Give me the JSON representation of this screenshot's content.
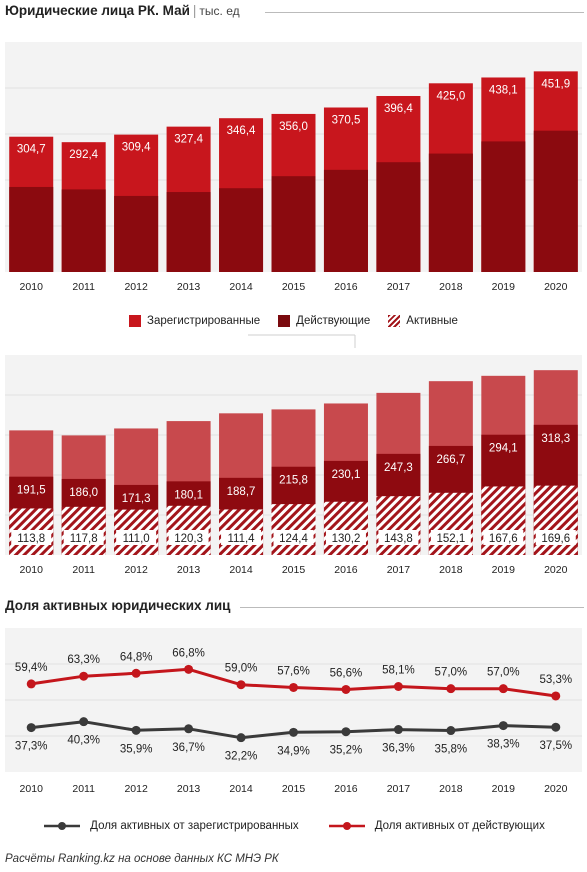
{
  "header": {
    "title": "Юридические лица РК. Май",
    "separator": "|",
    "unit": "тыс. ед"
  },
  "chart_data": [
    {
      "type": "bar",
      "categories": [
        "2010",
        "2011",
        "2012",
        "2013",
        "2014",
        "2015",
        "2016",
        "2017",
        "2018",
        "2019",
        "2020"
      ],
      "series": [
        {
          "name": "Зарегистрированные",
          "values": [
            304.7,
            292.4,
            309.4,
            327.4,
            346.4,
            356.0,
            370.5,
            396.4,
            425.0,
            438.1,
            451.9
          ],
          "labels": [
            "304,7",
            "292,4",
            "309,4",
            "327,4",
            "346,4",
            "356,0",
            "370,5",
            "396,4",
            "425,0",
            "438,1",
            "451,9"
          ],
          "color": "#c8161d"
        },
        {
          "name": "Действующие",
          "values": [
            191.5,
            186.0,
            171.3,
            180.1,
            188.7,
            215.8,
            230.1,
            247.3,
            266.7,
            294.1,
            318.3
          ],
          "color": "#8b0a0f"
        }
      ]
    },
    {
      "type": "bar",
      "categories": [
        "2010",
        "2011",
        "2012",
        "2013",
        "2014",
        "2015",
        "2016",
        "2017",
        "2018",
        "2019",
        "2020"
      ],
      "series": [
        {
          "name": "Зарегистрированные",
          "values": [
            304.7,
            292.4,
            309.4,
            327.4,
            346.4,
            356.0,
            370.5,
            396.4,
            425.0,
            438.1,
            451.9
          ],
          "color": "#c8494d"
        },
        {
          "name": "Действующие",
          "values": [
            191.5,
            186.0,
            171.3,
            180.1,
            188.7,
            215.8,
            230.1,
            247.3,
            266.7,
            294.1,
            318.3
          ],
          "labels": [
            "191,5",
            "186,0",
            "171,3",
            "180,1",
            "188,7",
            "215,8",
            "230,1",
            "247,3",
            "266,7",
            "294,1",
            "318,3"
          ],
          "color": "#8e0a10"
        },
        {
          "name": "Активные",
          "values": [
            113.8,
            117.8,
            111.0,
            120.3,
            111.4,
            124.4,
            130.2,
            143.8,
            152.1,
            167.6,
            169.6
          ],
          "labels": [
            "113,8",
            "117,8",
            "111,0",
            "120,3",
            "111,4",
            "124,4",
            "130,2",
            "143,8",
            "152,1",
            "167,6",
            "169,6"
          ],
          "color": "#a3151b"
        }
      ]
    },
    {
      "type": "line",
      "title": "Доля активных юридических лиц",
      "categories": [
        "2010",
        "2011",
        "2012",
        "2013",
        "2014",
        "2015",
        "2016",
        "2017",
        "2018",
        "2019",
        "2020"
      ],
      "series": [
        {
          "name": "Доля активных от зарегистрированных",
          "values": [
            37.3,
            40.3,
            35.9,
            36.7,
            32.2,
            34.9,
            35.2,
            36.3,
            35.8,
            38.3,
            37.5
          ],
          "labels": [
            "37,3%",
            "40,3%",
            "35,9%",
            "36,7%",
            "32,2%",
            "34,9%",
            "35,2%",
            "36,3%",
            "35,8%",
            "38,3%",
            "37,5%"
          ],
          "color": "#3a3a3a"
        },
        {
          "name": "Доля активных от действующих",
          "values": [
            59.4,
            63.3,
            64.8,
            66.8,
            59.0,
            57.6,
            56.6,
            58.1,
            57.0,
            57.0,
            53.3
          ],
          "labels": [
            "59,4%",
            "63,3%",
            "64,8%",
            "66,8%",
            "59,0%",
            "57,6%",
            "56,6%",
            "58,1%",
            "57,0%",
            "57,0%",
            "53,3%"
          ],
          "color": "#c4161c"
        }
      ]
    }
  ],
  "legend_top": {
    "registered": "Зарегистрированные",
    "operating": "Действующие",
    "active": "Активные"
  },
  "legend_bottom": {
    "share_registered": "Доля активных от зарегистрированных",
    "share_operating": "Доля активных от действующих"
  },
  "footer": {
    "source": "Расчёты Ranking.kz на основе данных КС МНЭ РК"
  }
}
